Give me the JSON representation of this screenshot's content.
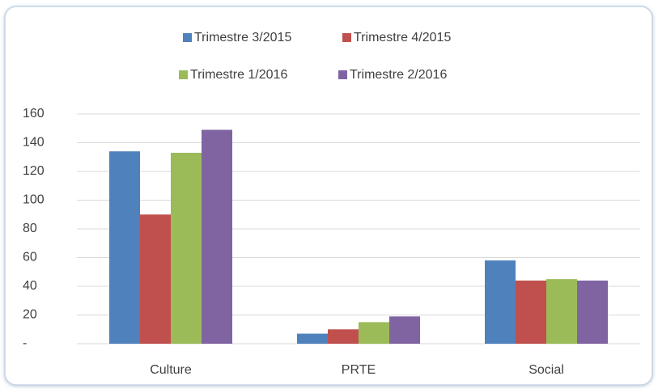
{
  "chart_data": {
    "type": "bar",
    "categories": [
      "Culture",
      "PRTE",
      "Social"
    ],
    "series": [
      {
        "name": "Trimestre 3/2015",
        "color": "#4f81bd",
        "values": [
          134,
          7,
          58
        ]
      },
      {
        "name": "Trimestre 4/2015",
        "color": "#c0504d",
        "values": [
          90,
          10,
          44
        ]
      },
      {
        "name": "Trimestre 1/2016",
        "color": "#9bbb59",
        "values": [
          133,
          15,
          45
        ]
      },
      {
        "name": "Trimestre 2/2016",
        "color": "#8064a2",
        "values": [
          149,
          19,
          44
        ]
      }
    ],
    "ylim": [
      0,
      160
    ],
    "yticks": [
      {
        "value": 0,
        "label": "-"
      },
      20,
      40,
      60,
      80,
      100,
      120,
      140,
      160
    ],
    "grid": true
  }
}
